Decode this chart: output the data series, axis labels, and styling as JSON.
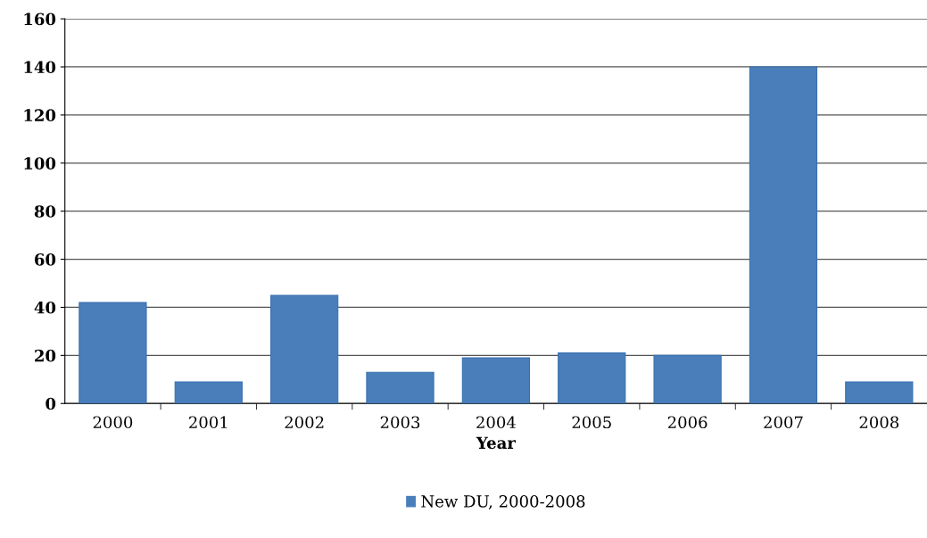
{
  "chart_data": {
    "type": "bar",
    "xlabel": "Year",
    "categories": [
      "2000",
      "2001",
      "2002",
      "2003",
      "2004",
      "2005",
      "2006",
      "2007",
      "2008"
    ],
    "series": [
      {
        "name": "New DU, 2000-2008",
        "color": "#4a7ebb",
        "values": [
          42,
          9,
          45,
          13,
          19,
          21,
          20,
          140,
          9
        ]
      }
    ],
    "ylim": [
      0,
      160
    ],
    "yticks": [
      0,
      20,
      40,
      60,
      80,
      100,
      120,
      140,
      160
    ],
    "grid": "y",
    "legend": "bottom"
  }
}
